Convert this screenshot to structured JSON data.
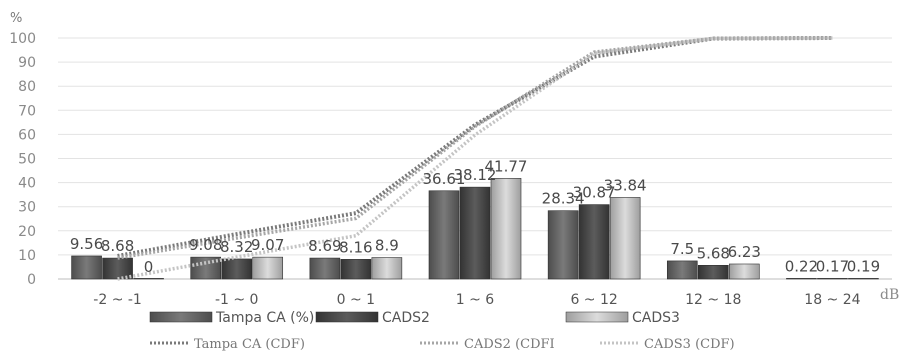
{
  "chart_data": {
    "type": "bar",
    "ylabel": "%",
    "xunit": "dB",
    "ylim": [
      0,
      100
    ],
    "yticks": [
      0,
      10,
      20,
      30,
      40,
      50,
      60,
      70,
      80,
      90,
      100
    ],
    "categories": [
      "-2 ~ -1",
      "-1 ~ 0",
      "0 ~ 1",
      "1 ~ 6",
      "6 ~ 12",
      "12 ~ 18",
      "18 ~ 24"
    ],
    "grid": true,
    "legend": "bottom",
    "series": [
      {
        "name": "Tampa CA (%)",
        "type": "bar",
        "values": [
          9.56,
          9.08,
          8.69,
          36.61,
          28.34,
          7.5,
          0.22
        ],
        "color": "#6b6b6b"
      },
      {
        "name": "CADS2",
        "type": "bar",
        "values": [
          8.68,
          8.32,
          8.16,
          38.12,
          30.87,
          5.68,
          0.17
        ],
        "color": "#4a4a4a"
      },
      {
        "name": "CADS3",
        "type": "bar",
        "values": [
          0,
          9.07,
          8.9,
          41.77,
          33.84,
          6.23,
          0.19
        ],
        "color": "#b8b8b8"
      },
      {
        "name": "Tampa CA (CDF)",
        "type": "line",
        "values": [
          9.56,
          18.64,
          27.33,
          63.94,
          92.28,
          99.78,
          100
        ],
        "color": "#7a7a7a"
      },
      {
        "name": "CADS2 (CDFI",
        "type": "line",
        "values": [
          8.68,
          17,
          25.16,
          63.28,
          94.15,
          99.83,
          100
        ],
        "color": "#a6a6a6"
      },
      {
        "name": "CADS3 (CDF)",
        "type": "line",
        "values": [
          0,
          9.07,
          17.97,
          59.74,
          93.58,
          99.81,
          100
        ],
        "color": "#c4c4c4"
      }
    ]
  }
}
